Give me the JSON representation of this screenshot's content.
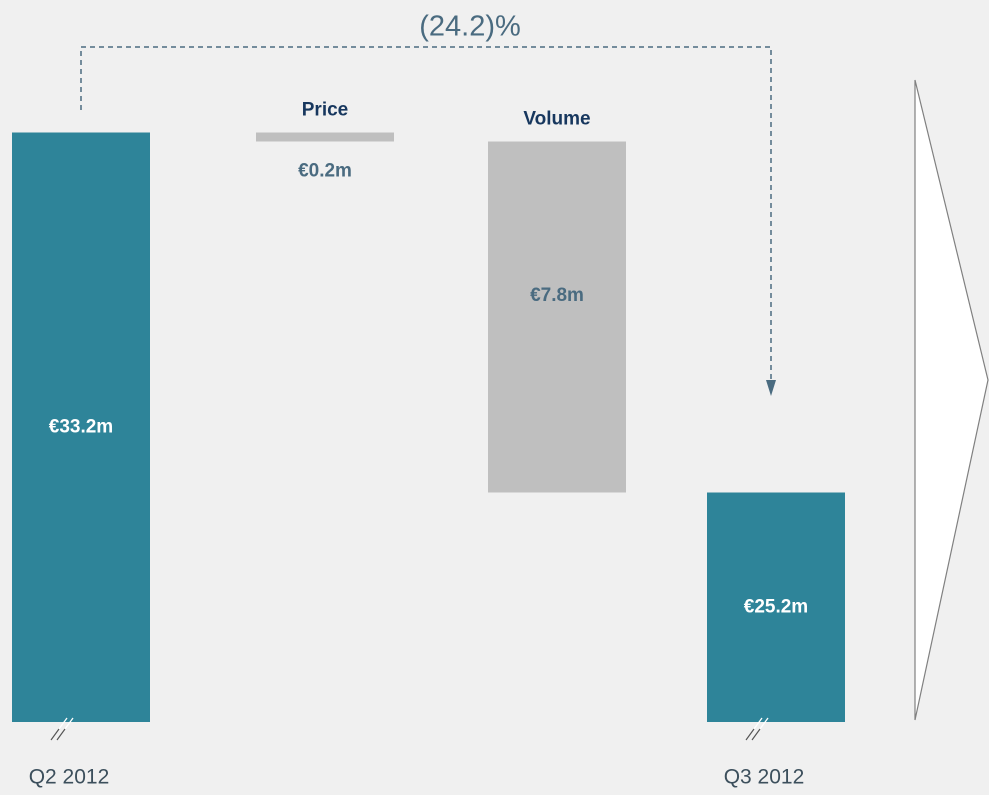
{
  "chart_data": {
    "type": "waterfall",
    "annotation": "(24.2)%",
    "categories": [
      "Q2 2012",
      "Price",
      "Volume",
      "Q3 2012"
    ],
    "values": [
      33.2,
      -0.2,
      -7.8,
      25.2
    ],
    "value_labels": [
      "€33.2m",
      "€0.2m",
      "€7.8m",
      "€25.2m"
    ],
    "colors": [
      "#2e8499",
      "#bfbfbf",
      "#bfbfbf",
      "#2e8499"
    ],
    "ylim": [
      20.1,
      34
    ]
  }
}
